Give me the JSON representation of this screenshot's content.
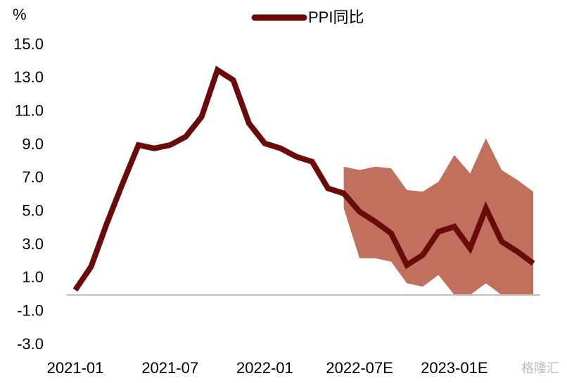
{
  "chart_data": {
    "type": "line",
    "y_unit_label": "%",
    "watermark": "格隆汇",
    "categories": [
      "2021-01",
      null,
      null,
      null,
      null,
      null,
      "2021-07",
      null,
      null,
      null,
      null,
      null,
      "2022-01",
      null,
      null,
      null,
      null,
      null,
      "2022-07E",
      null,
      null,
      null,
      null,
      null,
      "2023-01E",
      null,
      null,
      null,
      null,
      null
    ],
    "series": [
      {
        "name": "PPI同比",
        "color": "#6b0a0a",
        "values": [
          0.3,
          1.7,
          4.3,
          6.7,
          9.0,
          8.8,
          9.0,
          9.5,
          10.7,
          13.5,
          12.9,
          10.3,
          9.1,
          8.8,
          8.3,
          8.0,
          6.4,
          6.1,
          5.0,
          4.4,
          3.7,
          1.8,
          2.4,
          3.8,
          4.1,
          2.8,
          5.2,
          3.2,
          2.6,
          1.9
        ]
      }
    ],
    "band": {
      "color": "#c0705c",
      "upper": [
        null,
        null,
        null,
        null,
        null,
        null,
        null,
        null,
        null,
        null,
        null,
        null,
        null,
        null,
        null,
        null,
        null,
        7.7,
        7.5,
        7.7,
        7.6,
        6.3,
        6.2,
        6.8,
        8.4,
        7.3,
        9.4,
        7.5,
        6.9,
        6.2
      ],
      "lower": [
        null,
        null,
        null,
        null,
        null,
        null,
        null,
        null,
        null,
        null,
        null,
        null,
        null,
        null,
        null,
        null,
        null,
        5.2,
        2.2,
        2.2,
        2.0,
        0.7,
        0.5,
        1.2,
        0,
        0,
        0.7,
        0,
        0,
        0
      ]
    },
    "ylim": [
      -3,
      15
    ],
    "yticks": [
      {
        "value": -3,
        "label": "-3.0"
      },
      {
        "value": -1,
        "label": "-1.0"
      },
      {
        "value": 1,
        "label": "1.0"
      },
      {
        "value": 3,
        "label": "3.0"
      },
      {
        "value": 5,
        "label": "5.0"
      },
      {
        "value": 7,
        "label": "7.0"
      },
      {
        "value": 9,
        "label": "9.0"
      },
      {
        "value": 11,
        "label": "11.0"
      },
      {
        "value": 13,
        "label": "13.0"
      },
      {
        "value": 15,
        "label": "15.0"
      }
    ],
    "grid": false,
    "legend": "top"
  }
}
